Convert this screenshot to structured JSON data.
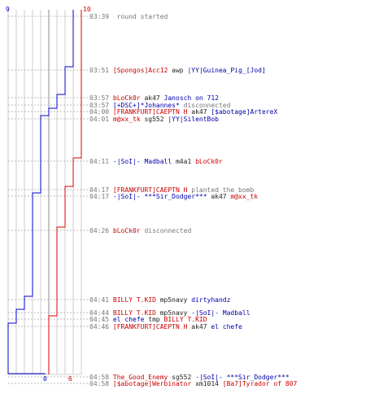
{
  "colors": {
    "red_team": "#dd0000",
    "blue_team": "#0000cc",
    "grid": "#cccccc",
    "dashed": "#bbbbbb",
    "text_grey": "#777777"
  },
  "scores": {
    "blue_top": "9",
    "red_top": "10",
    "blue_bottom": "0",
    "red_bottom": "6"
  },
  "chart": {
    "players": 10,
    "blue_start": 9,
    "blue_end": 0,
    "red_start": 10,
    "red_end": 6
  },
  "events": [
    {
      "time": "03:39",
      "parts": [
        {
          "text": " round started",
          "c": "grey"
        }
      ]
    },
    {
      "time": "03:51",
      "parts": [
        {
          "text": "[Spongos]Acc12",
          "c": "red"
        },
        {
          "text": " awp ",
          "c": "dark"
        },
        {
          "text": "|YY|Guinea_Pig_[Jod]",
          "c": "blue"
        }
      ]
    },
    {
      "time": "03:57",
      "parts": [
        {
          "text": "bLoCk0r",
          "c": "red"
        },
        {
          "text": " ak47 ",
          "c": "dark"
        },
        {
          "text": "Janosch on 712",
          "c": "blue"
        }
      ]
    },
    {
      "time": "03:57",
      "parts": [
        {
          "text": "[+DSC+]*Johannes*",
          "c": "blue"
        },
        {
          "text": " disconnected",
          "c": "grey"
        }
      ]
    },
    {
      "time": "04:00",
      "parts": [
        {
          "text": "[FRANKFURT]CAEPTN H",
          "c": "red"
        },
        {
          "text": " ak47 ",
          "c": "dark"
        },
        {
          "text": "[$abotage]ArtereX",
          "c": "blue"
        }
      ]
    },
    {
      "time": "04:01",
      "parts": [
        {
          "text": "m@xx_tk",
          "c": "red"
        },
        {
          "text": " sg552 ",
          "c": "dark"
        },
        {
          "text": "|YY|SilentBob",
          "c": "blue"
        }
      ]
    },
    {
      "time": "04:11",
      "parts": [
        {
          "text": "-|SoI|- Madball",
          "c": "blue"
        },
        {
          "text": " m4a1 ",
          "c": "dark"
        },
        {
          "text": "bLoCk0r",
          "c": "red"
        }
      ]
    },
    {
      "time": "04:17",
      "parts": [
        {
          "text": "[FRANKFURT]CAEPTN H",
          "c": "red"
        },
        {
          "text": " planted the bomb",
          "c": "grey"
        }
      ]
    },
    {
      "time": "04:17",
      "parts": [
        {
          "text": "-|SoI|- ***Sir_Dodger***",
          "c": "blue"
        },
        {
          "text": " ak47 ",
          "c": "dark"
        },
        {
          "text": "m@xx_tk",
          "c": "red"
        }
      ]
    },
    {
      "time": "04:26",
      "parts": [
        {
          "text": "bLoCk0r",
          "c": "red"
        },
        {
          "text": " disconnected",
          "c": "grey"
        }
      ]
    },
    {
      "time": "04:41",
      "parts": [
        {
          "text": "BILLY T.KID",
          "c": "red"
        },
        {
          "text": " mp5navy ",
          "c": "dark"
        },
        {
          "text": "dirtyhandz",
          "c": "blue"
        }
      ]
    },
    {
      "time": "04:44",
      "parts": [
        {
          "text": "BILLY T.KID",
          "c": "red"
        },
        {
          "text": " mp5navy ",
          "c": "dark"
        },
        {
          "text": "-|SoI|- Madball",
          "c": "blue"
        }
      ]
    },
    {
      "time": "04:45",
      "parts": [
        {
          "text": "el chefe",
          "c": "blue"
        },
        {
          "text": " tmp ",
          "c": "dark"
        },
        {
          "text": "BILLY T.KID",
          "c": "red"
        }
      ]
    },
    {
      "time": "04:46",
      "parts": [
        {
          "text": "[FRANKFURT]CAEPTN H",
          "c": "red"
        },
        {
          "text": " ak47 ",
          "c": "dark"
        },
        {
          "text": "el chefe",
          "c": "blue"
        }
      ]
    },
    {
      "time": "04:58",
      "parts": [
        {
          "text": "The_Good_Enemy",
          "c": "red"
        },
        {
          "text": " sg552 ",
          "c": "dark"
        },
        {
          "text": "-|SoI|- ***Sir_Dodger***",
          "c": "blue"
        }
      ]
    },
    {
      "time": "04:58",
      "parts": [
        {
          "text": "[$abotage]Werbinator",
          "c": "red"
        },
        {
          "text": " xm1014 ",
          "c": "dark"
        },
        {
          "text": "[Ba7]Tyrador of 807",
          "c": "red"
        }
      ]
    }
  ]
}
